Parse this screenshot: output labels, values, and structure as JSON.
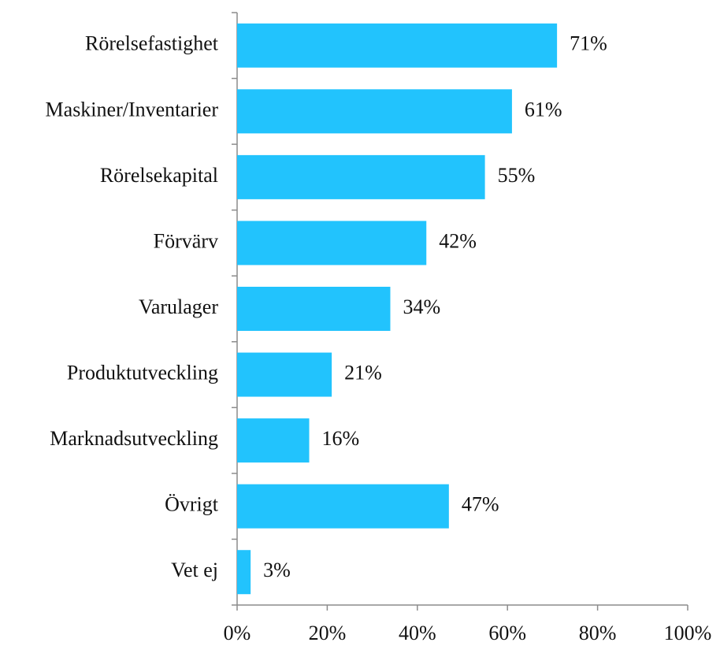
{
  "chart_data": {
    "type": "hbar",
    "categories": [
      "Rörelsefastighet",
      "Maskiner/Inventarier",
      "Rörelsekapital",
      "Förvärv",
      "Varulager",
      "Produktutveckling",
      "Marknadsutveckling",
      "Övrigt",
      "Vet ej"
    ],
    "values": [
      71,
      61,
      55,
      42,
      34,
      21,
      16,
      47,
      3
    ],
    "value_labels": [
      "71%",
      "61%",
      "55%",
      "42%",
      "34%",
      "21%",
      "16%",
      "47%",
      "3%"
    ],
    "color": "#22c3fd",
    "xlim": [
      0,
      100
    ],
    "xticks": [
      {
        "value": 0,
        "label": "0%"
      },
      {
        "value": 20,
        "label": "20%"
      },
      {
        "value": 40,
        "label": "40%"
      },
      {
        "value": 60,
        "label": "60%"
      },
      {
        "value": 80,
        "label": "80%"
      },
      {
        "value": 100,
        "label": "100%"
      }
    ],
    "grid": false
  }
}
